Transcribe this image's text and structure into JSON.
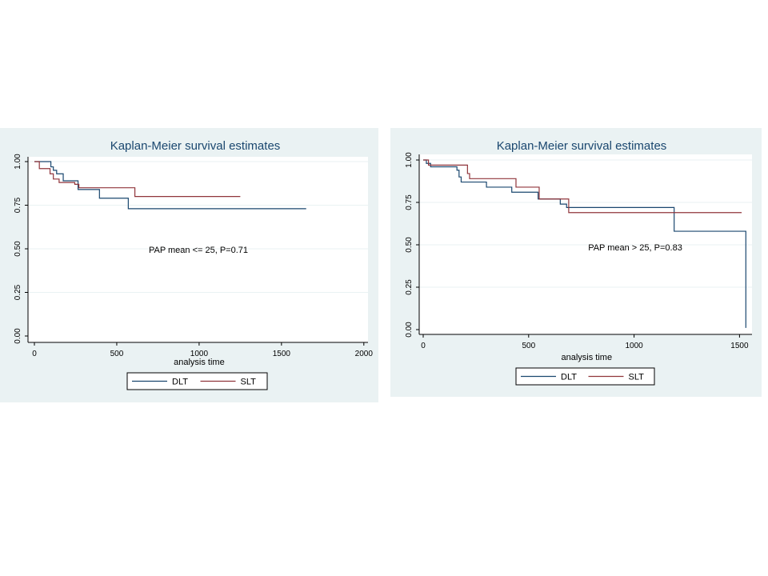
{
  "colors": {
    "panel_bg": "#eaf2f3",
    "plot_bg": "#ffffff",
    "grid": "#eaf2f3",
    "DLT": "#1a476f",
    "SLT": "#90353b"
  },
  "chart_data": [
    {
      "type": "line",
      "step": true,
      "title": "Kaplan-Meier survival estimates",
      "xlabel": "analysis time",
      "ylabel": "",
      "xlim": [
        0,
        2000
      ],
      "ylim": [
        0,
        1
      ],
      "xticks": [
        "0",
        "500",
        "1000",
        "1500",
        "2000"
      ],
      "yticks": [
        "0.00",
        "0.25",
        "0.50",
        "0.75",
        "1.00"
      ],
      "grid": true,
      "legend": "bottom",
      "annotation": "PAP mean <= 25, P=0.71",
      "series": [
        {
          "name": "DLT",
          "x": [
            0,
            100,
            115,
            135,
            175,
            265,
            395,
            570,
            1650
          ],
          "y": [
            1.0,
            0.97,
            0.95,
            0.93,
            0.89,
            0.84,
            0.79,
            0.73,
            0.73
          ]
        },
        {
          "name": "SLT",
          "x": [
            0,
            30,
            95,
            115,
            150,
            245,
            270,
            610,
            1250
          ],
          "y": [
            1.0,
            0.96,
            0.93,
            0.9,
            0.88,
            0.87,
            0.85,
            0.8,
            0.8
          ]
        }
      ]
    },
    {
      "type": "line",
      "step": true,
      "title": "Kaplan-Meier survival estimates",
      "xlabel": "analysis time",
      "ylabel": "",
      "xlim": [
        0,
        1550
      ],
      "ylim": [
        0,
        1
      ],
      "xticks": [
        "0",
        "500",
        "1000",
        "1500"
      ],
      "yticks": [
        "0.00",
        "0.25",
        "0.50",
        "0.75",
        "1.00"
      ],
      "grid": true,
      "legend": "bottom",
      "annotation": "PAP mean > 25, P=0.83",
      "series": [
        {
          "name": "DLT",
          "x": [
            0,
            15,
            35,
            160,
            170,
            180,
            300,
            420,
            545,
            650,
            680,
            1190,
            1530
          ],
          "y": [
            1.0,
            0.98,
            0.96,
            0.94,
            0.9,
            0.87,
            0.84,
            0.81,
            0.77,
            0.74,
            0.72,
            0.58,
            0.01
          ]
        },
        {
          "name": "SLT",
          "x": [
            0,
            25,
            210,
            220,
            440,
            550,
            690,
            1510
          ],
          "y": [
            1.0,
            0.97,
            0.92,
            0.89,
            0.84,
            0.77,
            0.69,
            0.69
          ]
        }
      ]
    }
  ]
}
